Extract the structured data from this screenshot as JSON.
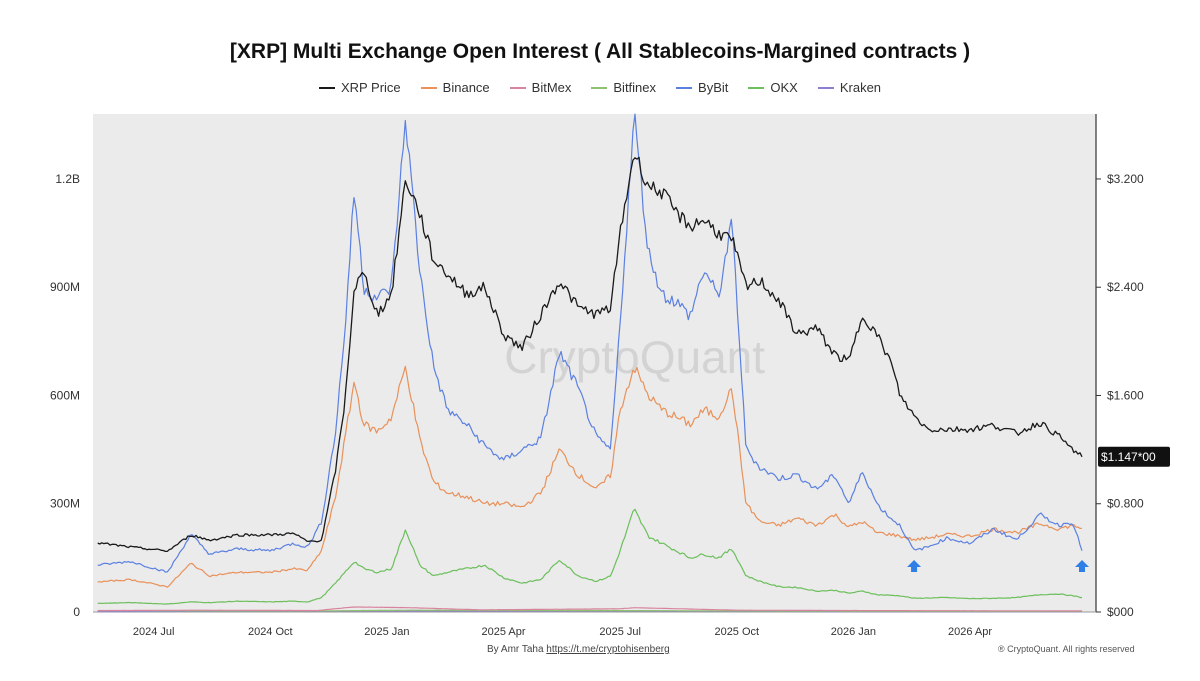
{
  "chart_data": {
    "type": "line",
    "title": "[XRP] Multi Exchange Open Interest ( All Stablecoins-Margined contracts )",
    "watermark": "CryptoQuant",
    "x_ticks": [
      "2024 Jul",
      "2024 Oct",
      "2025 Jan",
      "2025 Apr",
      "2025 Jul",
      "2025 Oct",
      "2026 Jan",
      "2026 Apr"
    ],
    "x_tick_times": [
      2024.5,
      2024.75,
      2025.0,
      2025.25,
      2025.5,
      2025.75,
      2026.0,
      2026.25
    ],
    "x_range": [
      2024.37,
      2026.52
    ],
    "left_axis": {
      "ticks": [
        "0",
        "300M",
        "600M",
        "900M",
        "1.2B"
      ],
      "tick_values": [
        0,
        300000000,
        600000000,
        900000000,
        1200000000
      ],
      "range": [
        0,
        1380000000
      ]
    },
    "right_axis": {
      "ticks": [
        "$000",
        "$0.800",
        "$1.600",
        "$2.400",
        "$3.200"
      ],
      "tick_values": [
        0,
        0.8,
        1.6,
        2.4,
        3.2
      ],
      "range": [
        0,
        3.68
      ]
    },
    "current_price_label": "$1.147*00",
    "current_price": 1.147,
    "grid": false,
    "legend_position": "top-center",
    "series": [
      {
        "name": "XRP Price",
        "axis": "right",
        "color": "#1a1a1a",
        "points": [
          [
            2024.38,
            0.51
          ],
          [
            2024.45,
            0.48
          ],
          [
            2024.53,
            0.45
          ],
          [
            2024.58,
            0.57
          ],
          [
            2024.62,
            0.53
          ],
          [
            2024.68,
            0.57
          ],
          [
            2024.75,
            0.57
          ],
          [
            2024.8,
            0.58
          ],
          [
            2024.83,
            0.52
          ],
          [
            2024.86,
            0.53
          ],
          [
            2024.89,
            1.05
          ],
          [
            2024.91,
            1.55
          ],
          [
            2024.93,
            2.4
          ],
          [
            2024.95,
            2.5
          ],
          [
            2024.98,
            2.2
          ],
          [
            2025.01,
            2.35
          ],
          [
            2025.04,
            3.2
          ],
          [
            2025.07,
            2.95
          ],
          [
            2025.1,
            2.6
          ],
          [
            2025.13,
            2.5
          ],
          [
            2025.17,
            2.35
          ],
          [
            2025.21,
            2.4
          ],
          [
            2025.25,
            2.05
          ],
          [
            2025.29,
            1.95
          ],
          [
            2025.33,
            2.2
          ],
          [
            2025.37,
            2.45
          ],
          [
            2025.41,
            2.25
          ],
          [
            2025.45,
            2.2
          ],
          [
            2025.48,
            2.25
          ],
          [
            2025.5,
            2.8
          ],
          [
            2025.53,
            3.4
          ],
          [
            2025.56,
            3.15
          ],
          [
            2025.59,
            3.1
          ],
          [
            2025.62,
            2.95
          ],
          [
            2025.65,
            2.85
          ],
          [
            2025.68,
            2.9
          ],
          [
            2025.71,
            2.8
          ],
          [
            2025.74,
            2.75
          ],
          [
            2025.77,
            2.4
          ],
          [
            2025.8,
            2.45
          ],
          [
            2025.84,
            2.3
          ],
          [
            2025.88,
            2.05
          ],
          [
            2025.92,
            2.1
          ],
          [
            2025.96,
            1.9
          ],
          [
            2025.99,
            1.85
          ],
          [
            2026.02,
            2.2
          ],
          [
            2026.05,
            2.05
          ],
          [
            2026.08,
            1.85
          ],
          [
            2026.1,
            1.6
          ],
          [
            2026.13,
            1.45
          ],
          [
            2026.16,
            1.35
          ],
          [
            2026.2,
            1.35
          ],
          [
            2026.25,
            1.35
          ],
          [
            2026.3,
            1.38
          ],
          [
            2026.35,
            1.32
          ],
          [
            2026.4,
            1.4
          ],
          [
            2026.44,
            1.3
          ],
          [
            2026.47,
            1.2
          ],
          [
            2026.49,
            1.147
          ]
        ]
      },
      {
        "name": "Binance",
        "axis": "left",
        "color": "#e8915a",
        "points": [
          [
            2024.38,
            83000000
          ],
          [
            2024.45,
            90000000
          ],
          [
            2024.53,
            70000000
          ],
          [
            2024.58,
            135000000
          ],
          [
            2024.62,
            100000000
          ],
          [
            2024.68,
            110000000
          ],
          [
            2024.75,
            110000000
          ],
          [
            2024.8,
            120000000
          ],
          [
            2024.83,
            115000000
          ],
          [
            2024.86,
            170000000
          ],
          [
            2024.89,
            320000000
          ],
          [
            2024.91,
            480000000
          ],
          [
            2024.93,
            640000000
          ],
          [
            2024.95,
            520000000
          ],
          [
            2024.98,
            500000000
          ],
          [
            2025.01,
            540000000
          ],
          [
            2025.04,
            680000000
          ],
          [
            2025.07,
            480000000
          ],
          [
            2025.1,
            360000000
          ],
          [
            2025.13,
            330000000
          ],
          [
            2025.17,
            320000000
          ],
          [
            2025.21,
            300000000
          ],
          [
            2025.25,
            300000000
          ],
          [
            2025.29,
            290000000
          ],
          [
            2025.33,
            330000000
          ],
          [
            2025.37,
            450000000
          ],
          [
            2025.41,
            380000000
          ],
          [
            2025.45,
            340000000
          ],
          [
            2025.48,
            380000000
          ],
          [
            2025.5,
            560000000
          ],
          [
            2025.53,
            680000000
          ],
          [
            2025.56,
            600000000
          ],
          [
            2025.59,
            560000000
          ],
          [
            2025.62,
            540000000
          ],
          [
            2025.65,
            520000000
          ],
          [
            2025.68,
            560000000
          ],
          [
            2025.71,
            540000000
          ],
          [
            2025.74,
            620000000
          ],
          [
            2025.77,
            300000000
          ],
          [
            2025.8,
            250000000
          ],
          [
            2025.84,
            240000000
          ],
          [
            2025.88,
            260000000
          ],
          [
            2025.92,
            240000000
          ],
          [
            2025.96,
            270000000
          ],
          [
            2025.99,
            235000000
          ],
          [
            2026.02,
            250000000
          ],
          [
            2026.05,
            220000000
          ],
          [
            2026.08,
            215000000
          ],
          [
            2026.1,
            210000000
          ],
          [
            2026.13,
            200000000
          ],
          [
            2026.16,
            205000000
          ],
          [
            2026.2,
            215000000
          ],
          [
            2026.25,
            210000000
          ],
          [
            2026.3,
            230000000
          ],
          [
            2026.35,
            220000000
          ],
          [
            2026.4,
            245000000
          ],
          [
            2026.44,
            230000000
          ],
          [
            2026.47,
            240000000
          ],
          [
            2026.49,
            232000000
          ]
        ]
      },
      {
        "name": "BitMex",
        "axis": "left",
        "color": "#d9849e",
        "points": [
          [
            2024.38,
            4000000
          ],
          [
            2024.6,
            5000000
          ],
          [
            2024.85,
            4000000
          ],
          [
            2024.93,
            14000000
          ],
          [
            2025.05,
            12000000
          ],
          [
            2025.2,
            6000000
          ],
          [
            2025.5,
            9000000
          ],
          [
            2025.53,
            12000000
          ],
          [
            2025.75,
            5000000
          ],
          [
            2026.0,
            4000000
          ],
          [
            2026.49,
            3000000
          ]
        ]
      },
      {
        "name": "Bitfinex",
        "axis": "left",
        "color": "#8fc16e",
        "points": [
          [
            2024.38,
            4000000
          ],
          [
            2024.6,
            3000000
          ],
          [
            2024.85,
            3000000
          ],
          [
            2025.05,
            5000000
          ],
          [
            2025.5,
            4000000
          ],
          [
            2026.0,
            2000000
          ],
          [
            2026.49,
            2000000
          ]
        ]
      },
      {
        "name": "ByBit",
        "axis": "left",
        "color": "#5b80e0",
        "points": [
          [
            2024.38,
            130000000
          ],
          [
            2024.45,
            140000000
          ],
          [
            2024.53,
            110000000
          ],
          [
            2024.58,
            215000000
          ],
          [
            2024.62,
            160000000
          ],
          [
            2024.68,
            175000000
          ],
          [
            2024.75,
            170000000
          ],
          [
            2024.8,
            190000000
          ],
          [
            2024.83,
            180000000
          ],
          [
            2024.86,
            250000000
          ],
          [
            2024.89,
            500000000
          ],
          [
            2024.91,
            780000000
          ],
          [
            2024.93,
            1170000000
          ],
          [
            2024.95,
            900000000
          ],
          [
            2024.98,
            870000000
          ],
          [
            2025.01,
            900000000
          ],
          [
            2025.04,
            1370000000
          ],
          [
            2025.07,
            950000000
          ],
          [
            2025.1,
            680000000
          ],
          [
            2025.13,
            560000000
          ],
          [
            2025.17,
            520000000
          ],
          [
            2025.21,
            460000000
          ],
          [
            2025.25,
            420000000
          ],
          [
            2025.29,
            450000000
          ],
          [
            2025.33,
            480000000
          ],
          [
            2025.37,
            720000000
          ],
          [
            2025.41,
            620000000
          ],
          [
            2025.45,
            480000000
          ],
          [
            2025.48,
            450000000
          ],
          [
            2025.5,
            800000000
          ],
          [
            2025.53,
            1380000000
          ],
          [
            2025.56,
            1000000000
          ],
          [
            2025.59,
            880000000
          ],
          [
            2025.62,
            860000000
          ],
          [
            2025.65,
            820000000
          ],
          [
            2025.68,
            950000000
          ],
          [
            2025.71,
            870000000
          ],
          [
            2025.74,
            1080000000
          ],
          [
            2025.77,
            450000000
          ],
          [
            2025.8,
            400000000
          ],
          [
            2025.84,
            370000000
          ],
          [
            2025.88,
            380000000
          ],
          [
            2025.92,
            340000000
          ],
          [
            2025.96,
            380000000
          ],
          [
            2025.99,
            300000000
          ],
          [
            2026.02,
            390000000
          ],
          [
            2026.05,
            300000000
          ],
          [
            2026.08,
            260000000
          ],
          [
            2026.1,
            240000000
          ],
          [
            2026.13,
            170000000
          ],
          [
            2026.16,
            180000000
          ],
          [
            2026.2,
            205000000
          ],
          [
            2026.25,
            190000000
          ],
          [
            2026.3,
            230000000
          ],
          [
            2026.35,
            200000000
          ],
          [
            2026.4,
            270000000
          ],
          [
            2026.44,
            240000000
          ],
          [
            2026.47,
            250000000
          ],
          [
            2026.49,
            170000000
          ]
        ]
      },
      {
        "name": "OKX",
        "axis": "left",
        "color": "#6cbf5c",
        "points": [
          [
            2024.38,
            24000000
          ],
          [
            2024.45,
            26000000
          ],
          [
            2024.53,
            22000000
          ],
          [
            2024.58,
            28000000
          ],
          [
            2024.62,
            26000000
          ],
          [
            2024.68,
            30000000
          ],
          [
            2024.75,
            28000000
          ],
          [
            2024.8,
            30000000
          ],
          [
            2024.83,
            28000000
          ],
          [
            2024.86,
            40000000
          ],
          [
            2024.89,
            80000000
          ],
          [
            2024.91,
            110000000
          ],
          [
            2024.93,
            140000000
          ],
          [
            2024.95,
            120000000
          ],
          [
            2024.98,
            110000000
          ],
          [
            2025.01,
            120000000
          ],
          [
            2025.04,
            230000000
          ],
          [
            2025.07,
            130000000
          ],
          [
            2025.1,
            100000000
          ],
          [
            2025.13,
            110000000
          ],
          [
            2025.17,
            120000000
          ],
          [
            2025.21,
            130000000
          ],
          [
            2025.25,
            95000000
          ],
          [
            2025.29,
            80000000
          ],
          [
            2025.33,
            90000000
          ],
          [
            2025.37,
            145000000
          ],
          [
            2025.41,
            100000000
          ],
          [
            2025.45,
            85000000
          ],
          [
            2025.48,
            100000000
          ],
          [
            2025.5,
            170000000
          ],
          [
            2025.53,
            285000000
          ],
          [
            2025.56,
            210000000
          ],
          [
            2025.59,
            190000000
          ],
          [
            2025.62,
            170000000
          ],
          [
            2025.65,
            150000000
          ],
          [
            2025.68,
            160000000
          ],
          [
            2025.71,
            150000000
          ],
          [
            2025.74,
            175000000
          ],
          [
            2025.77,
            100000000
          ],
          [
            2025.8,
            85000000
          ],
          [
            2025.84,
            70000000
          ],
          [
            2025.88,
            68000000
          ],
          [
            2025.92,
            58000000
          ],
          [
            2025.96,
            60000000
          ],
          [
            2025.99,
            52000000
          ],
          [
            2026.02,
            58000000
          ],
          [
            2026.05,
            48000000
          ],
          [
            2026.1,
            45000000
          ],
          [
            2026.13,
            38000000
          ],
          [
            2026.2,
            40000000
          ],
          [
            2026.25,
            37000000
          ],
          [
            2026.3,
            38000000
          ],
          [
            2026.35,
            40000000
          ],
          [
            2026.4,
            48000000
          ],
          [
            2026.44,
            50000000
          ],
          [
            2026.47,
            45000000
          ],
          [
            2026.49,
            40000000
          ]
        ]
      },
      {
        "name": "Kraken",
        "axis": "left",
        "color": "#8b7fd4",
        "points": [
          [
            2024.38,
            1000000
          ],
          [
            2025.0,
            3000000
          ],
          [
            2025.5,
            3000000
          ],
          [
            2026.0,
            1000000
          ],
          [
            2026.49,
            1000000
          ]
        ]
      }
    ],
    "arrow_markers_at": [
      2026.13,
      2026.49
    ]
  },
  "footer": {
    "credit_prefix": "By Amr Taha",
    "credit_link": "https://t.me/cryptohisenberg",
    "copyright": "® CryptoQuant. All rights reserved"
  }
}
